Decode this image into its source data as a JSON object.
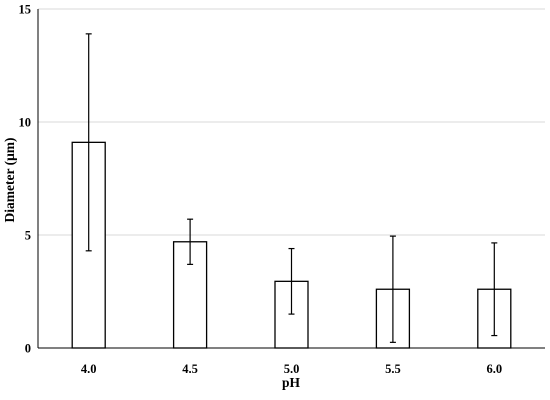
{
  "chart_data": {
    "type": "bar",
    "title": "",
    "xlabel": "pH",
    "ylabel": "Diameter (μm)",
    "categories": [
      "4.0",
      "4.5",
      "5.0",
      "5.5",
      "6.0"
    ],
    "series": [
      {
        "values": [
          9.1,
          4.7,
          2.95,
          2.6,
          2.6
        ],
        "error": [
          4.8,
          1.0,
          1.45,
          2.35,
          2.05
        ]
      }
    ],
    "ylim": [
      0,
      15
    ],
    "yticks": [
      "0",
      "5",
      "10",
      "15"
    ],
    "grid": "horizontal",
    "legend": "none",
    "colors": {
      "bar_fill": "#ffffff",
      "bar_stroke": "#000000",
      "grid": "#d9d9d9"
    }
  }
}
